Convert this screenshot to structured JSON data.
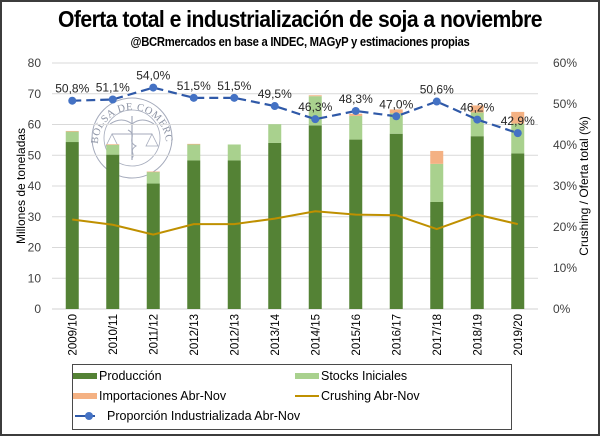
{
  "chart_data": {
    "type": "bar",
    "stacked": true,
    "title": "Oferta total e industrialización de soja a noviembre",
    "subtitle": "@BCRmercados en base a INDEC, MAGyP y estimaciones propias",
    "xlabel": "",
    "ylabel": "Millones de toneladas",
    "y2label": "Crushing / Oferta total (%)",
    "ylim": [
      0,
      80
    ],
    "yticks": [
      "0",
      "10",
      "20",
      "30",
      "40",
      "50",
      "60",
      "70",
      "80"
    ],
    "y2lim": [
      0,
      60
    ],
    "y2ticks": [
      "0%",
      "10%",
      "20%",
      "30%",
      "40%",
      "50%",
      "60%"
    ],
    "grid": true,
    "legend_position": "bottom",
    "categories": [
      "2009/10",
      "2010/11",
      "2011/12",
      "2012/13",
      "2012/13",
      "2013/14",
      "2014/15",
      "2015/16",
      "2016/17",
      "2017/18",
      "2018/19",
      "2019/20"
    ],
    "series": [
      {
        "name": "Producción",
        "kind": "bar",
        "axis": "left",
        "color": "#548235",
        "values": [
          54.3,
          50.2,
          40.8,
          48.3,
          48.3,
          54.0,
          59.7,
          55.1,
          57.0,
          34.8,
          56.2,
          50.6
        ]
      },
      {
        "name": "Stocks Iniciales",
        "kind": "bar",
        "axis": "left",
        "color": "#a9d18e",
        "values": [
          3.4,
          3.2,
          3.8,
          5.2,
          5.2,
          6.1,
          9.5,
          7.7,
          6.7,
          12.4,
          7.7,
          9.7
        ]
      },
      {
        "name": "Importaciones Abr-Nov",
        "kind": "bar",
        "axis": "left",
        "color": "#f4b183",
        "values": [
          0.2,
          0.2,
          0.1,
          0.2,
          0.0,
          0.0,
          0.3,
          0.7,
          1.2,
          4.2,
          2.3,
          3.8
        ]
      },
      {
        "name": "Crushing Abr-Nov",
        "kind": "line",
        "axis": "left",
        "color": "#bf9000",
        "values": [
          29.1,
          27.4,
          24.2,
          27.6,
          27.6,
          29.4,
          31.8,
          30.7,
          30.5,
          26.0,
          30.7,
          27.6
        ]
      },
      {
        "name": "Proporción Industrializada Abr-Nov",
        "kind": "line-dashed-markers",
        "axis": "right",
        "color": "#4472c4",
        "values": [
          50.8,
          51.1,
          54.0,
          51.5,
          51.5,
          49.5,
          46.3,
          48.3,
          47.0,
          50.6,
          46.2,
          42.9
        ],
        "labels": [
          "50,8%",
          "51,1%",
          "54,0%",
          "51,5%",
          "51,5%",
          "49,5%",
          "46,3%",
          "48,3%",
          "47,0%",
          "50,6%",
          "46,2%",
          "42,9%"
        ]
      }
    ],
    "annotations": [
      "BOLSA DE COMERCIO DE ROSARIO (watermark)"
    ]
  },
  "watermark": {
    "text": "BOLSA DE COMERCIO DE ROSARIO"
  },
  "legend": {
    "items": [
      {
        "label": "Producción",
        "color": "#548235"
      },
      {
        "label": "Stocks Iniciales",
        "color": "#a9d18e"
      },
      {
        "label": "Importaciones Abr-Nov",
        "color": "#f4b183"
      },
      {
        "label": "Crushing Abr-Nov",
        "color": "#bf9000"
      },
      {
        "label": "Proporción Industrializada Abr-Nov",
        "color": "#4472c4"
      }
    ]
  }
}
